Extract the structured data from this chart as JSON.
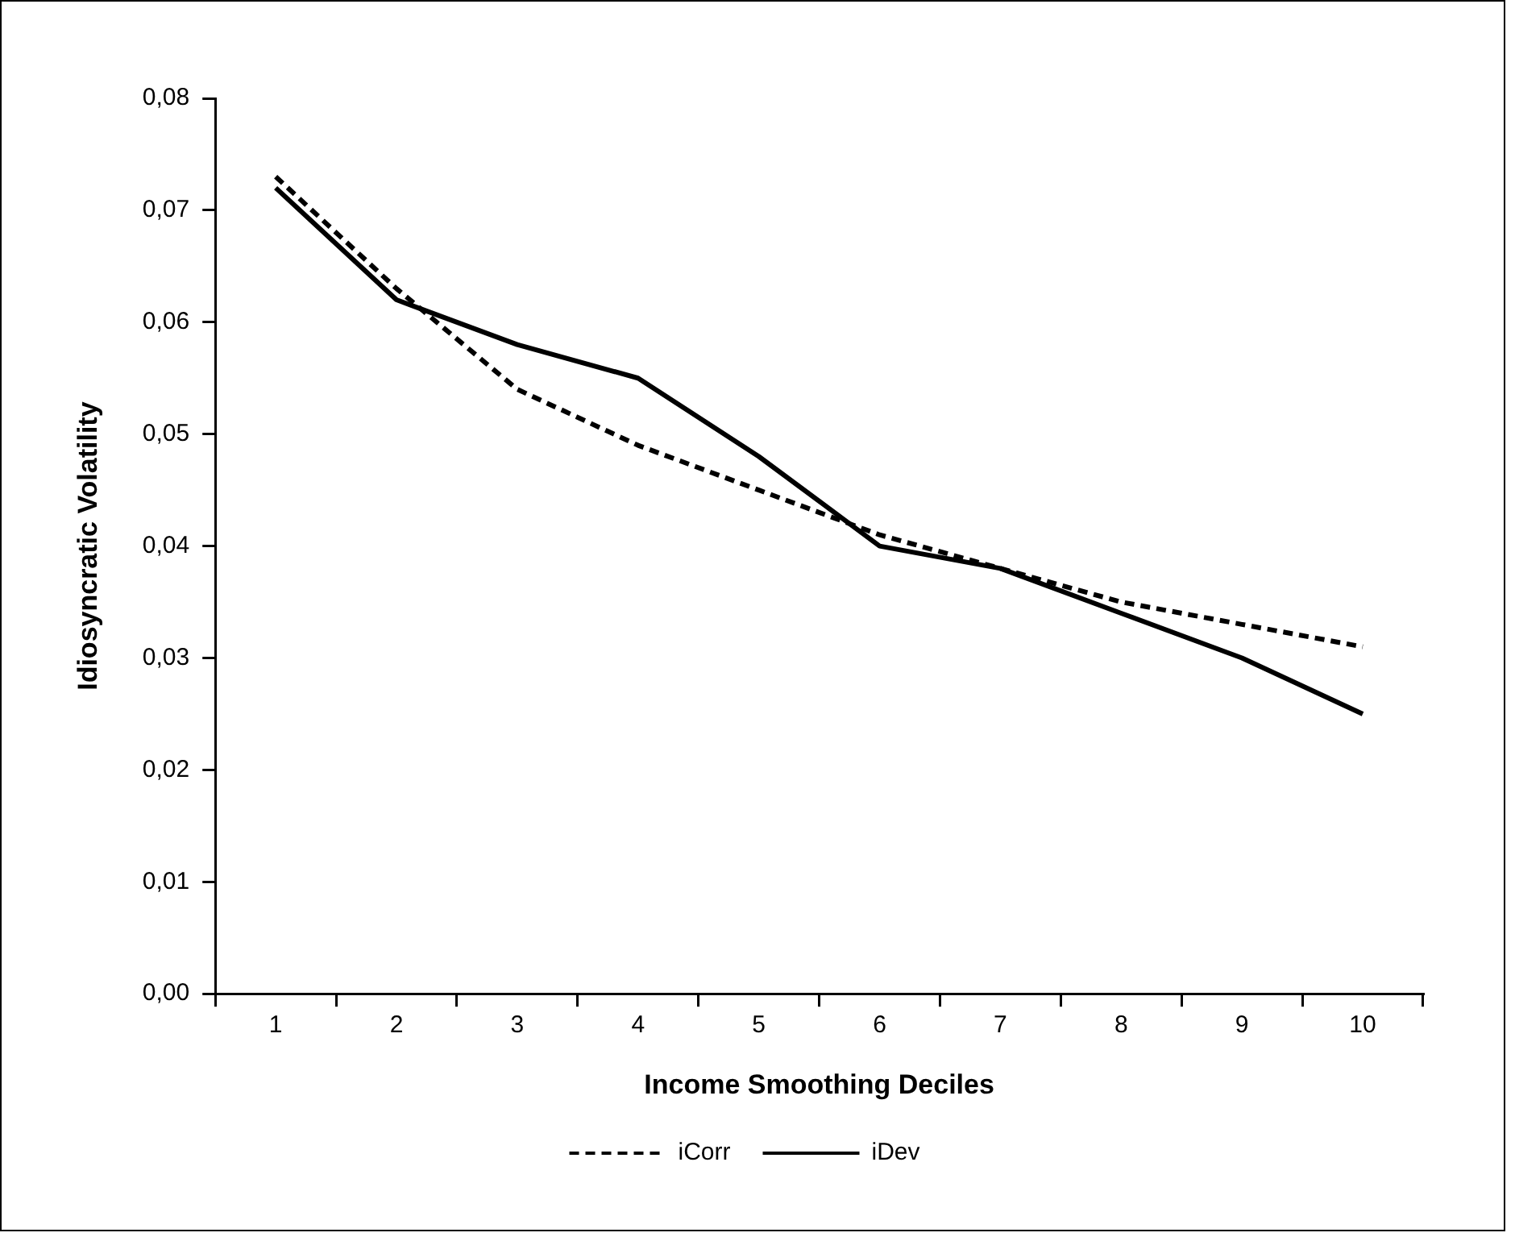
{
  "chart_data": {
    "type": "line",
    "xlabel": "Income Smoothing Deciles",
    "ylabel": "Idiosyncratic Volatility",
    "categories": [
      "1",
      "2",
      "3",
      "4",
      "5",
      "6",
      "7",
      "8",
      "9",
      "10"
    ],
    "series": [
      {
        "name": "iCorr",
        "color": "#000000",
        "line_style": "dashed",
        "values": [
          0.073,
          0.063,
          0.054,
          0.049,
          0.045,
          0.041,
          0.038,
          0.035,
          0.033,
          0.031
        ]
      },
      {
        "name": "iDev",
        "color": "#000000",
        "line_style": "solid",
        "values": [
          0.072,
          0.062,
          0.058,
          0.055,
          0.048,
          0.04,
          0.038,
          0.034,
          0.03,
          0.025
        ]
      }
    ],
    "ylim": [
      0,
      0.08
    ],
    "yticks": [
      {
        "value": 0,
        "label": "0,00"
      },
      {
        "value": 0.01,
        "label": "0,01"
      },
      {
        "value": 0.02,
        "label": "0,02"
      },
      {
        "value": 0.03,
        "label": "0,03"
      },
      {
        "value": 0.04,
        "label": "0,04"
      },
      {
        "value": 0.05,
        "label": "0,05"
      },
      {
        "value": 0.06,
        "label": "0,06"
      },
      {
        "value": 0.07,
        "label": "0,07"
      },
      {
        "value": 0.08,
        "label": "0,08"
      }
    ],
    "grid": false,
    "legend": "bottom",
    "marker": "none"
  }
}
